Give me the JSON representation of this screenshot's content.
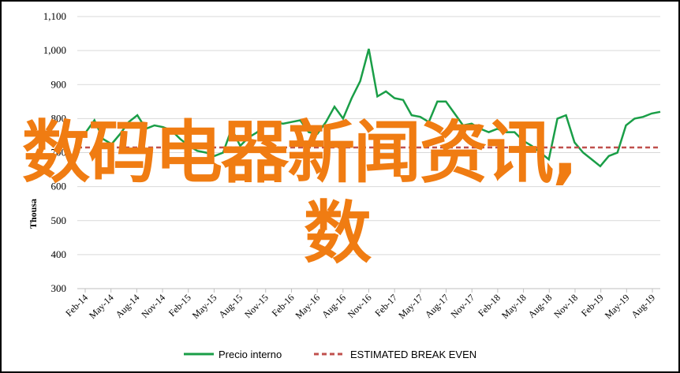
{
  "chart_data": {
    "type": "line",
    "ylabel": "Thousa",
    "ylim": [
      300,
      1100
    ],
    "yticks": [
      300,
      400,
      500,
      600,
      700,
      800,
      900,
      1000,
      1100
    ],
    "ytick_labels": [
      "300",
      "400",
      "500",
      "600",
      "700",
      "800",
      "900",
      "1,000",
      "1,100"
    ],
    "xtick_labels": [
      "Feb-14",
      "May-14",
      "Aug-14",
      "Nov-14",
      "Feb-15",
      "May-15",
      "Aug-15",
      "Nov-15",
      "Feb-16",
      "May-16",
      "Aug-16",
      "Nov-16",
      "Feb-17",
      "May-17",
      "Aug-17",
      "Nov-17",
      "Feb-18",
      "May-18",
      "Aug-18",
      "Nov-18",
      "Feb-19",
      "May-19",
      "Aug-19"
    ],
    "grid": true,
    "legend": "bottom",
    "series": [
      {
        "name": "Precio interno",
        "color": "#1a9e47",
        "style": "solid",
        "values": [
          745,
          760,
          795,
          740,
          725,
          755,
          790,
          810,
          770,
          780,
          775,
          765,
          740,
          720,
          705,
          700,
          690,
          700,
          770,
          720,
          745,
          760,
          790,
          790,
          785,
          790,
          795,
          760,
          755,
          790,
          835,
          800,
          860,
          910,
          1005,
          865,
          880,
          860,
          855,
          810,
          805,
          790,
          850,
          850,
          815,
          780,
          785,
          770,
          760,
          770,
          760,
          760,
          735,
          720,
          700,
          680,
          800,
          810,
          730,
          700,
          680,
          660,
          690,
          700,
          780,
          800,
          805,
          815,
          820
        ]
      },
      {
        "name": "ESTIMATED BREAK EVEN",
        "color": "#c0504d",
        "style": "dashed",
        "values": [
          715,
          715
        ]
      }
    ]
  },
  "overlay": {
    "line1": "数码电器新闻资讯,",
    "line2": "数"
  }
}
